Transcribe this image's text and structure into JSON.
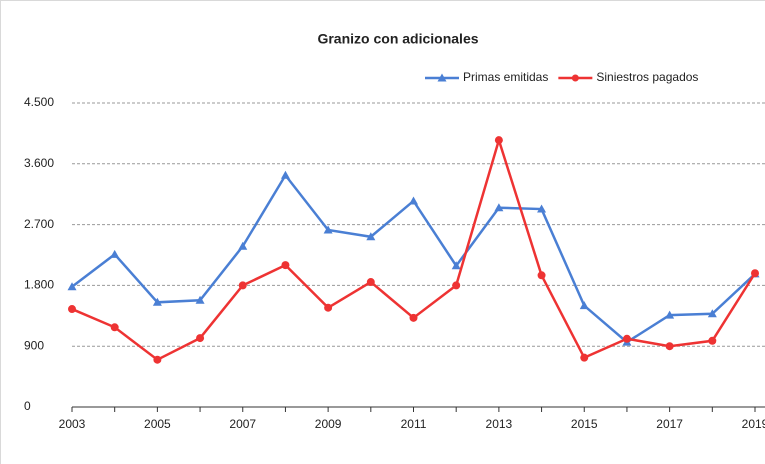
{
  "chart_data": {
    "type": "line",
    "title": "Granizo con adicionales",
    "x": [
      2003,
      2004,
      2005,
      2006,
      2007,
      2008,
      2009,
      2010,
      2011,
      2012,
      2013,
      2014,
      2015,
      2016,
      2017,
      2018,
      2019
    ],
    "xlim": [
      2003,
      2019
    ],
    "xticks": [
      2003,
      2005,
      2007,
      2009,
      2011,
      2013,
      2015,
      2017,
      2019
    ],
    "ylim": [
      0,
      4500
    ],
    "yticks": [
      0,
      900,
      {
        "value": 1800,
        "label": "1.800"
      },
      {
        "value": 2700,
        "label": "2.700"
      },
      {
        "value": 3600,
        "label": "3.600"
      },
      {
        "value": 4500,
        "label": "4.500"
      }
    ],
    "grid": true,
    "legend": "top-right",
    "series": [
      {
        "name": "Primas emitidas",
        "color": "#4a7fd4",
        "marker": "triangle",
        "values": [
          1780,
          2260,
          1550,
          1580,
          2380,
          3430,
          2620,
          2520,
          3050,
          2090,
          2950,
          2930,
          1500,
          960,
          1360,
          1380,
          1970
        ]
      },
      {
        "name": "Siniestros pagados",
        "color": "#ee3333",
        "marker": "circle",
        "values": [
          1450,
          1180,
          700,
          1020,
          1800,
          2100,
          1470,
          1850,
          1320,
          1800,
          3950,
          1950,
          730,
          1010,
          900,
          980,
          1980
        ]
      }
    ]
  }
}
